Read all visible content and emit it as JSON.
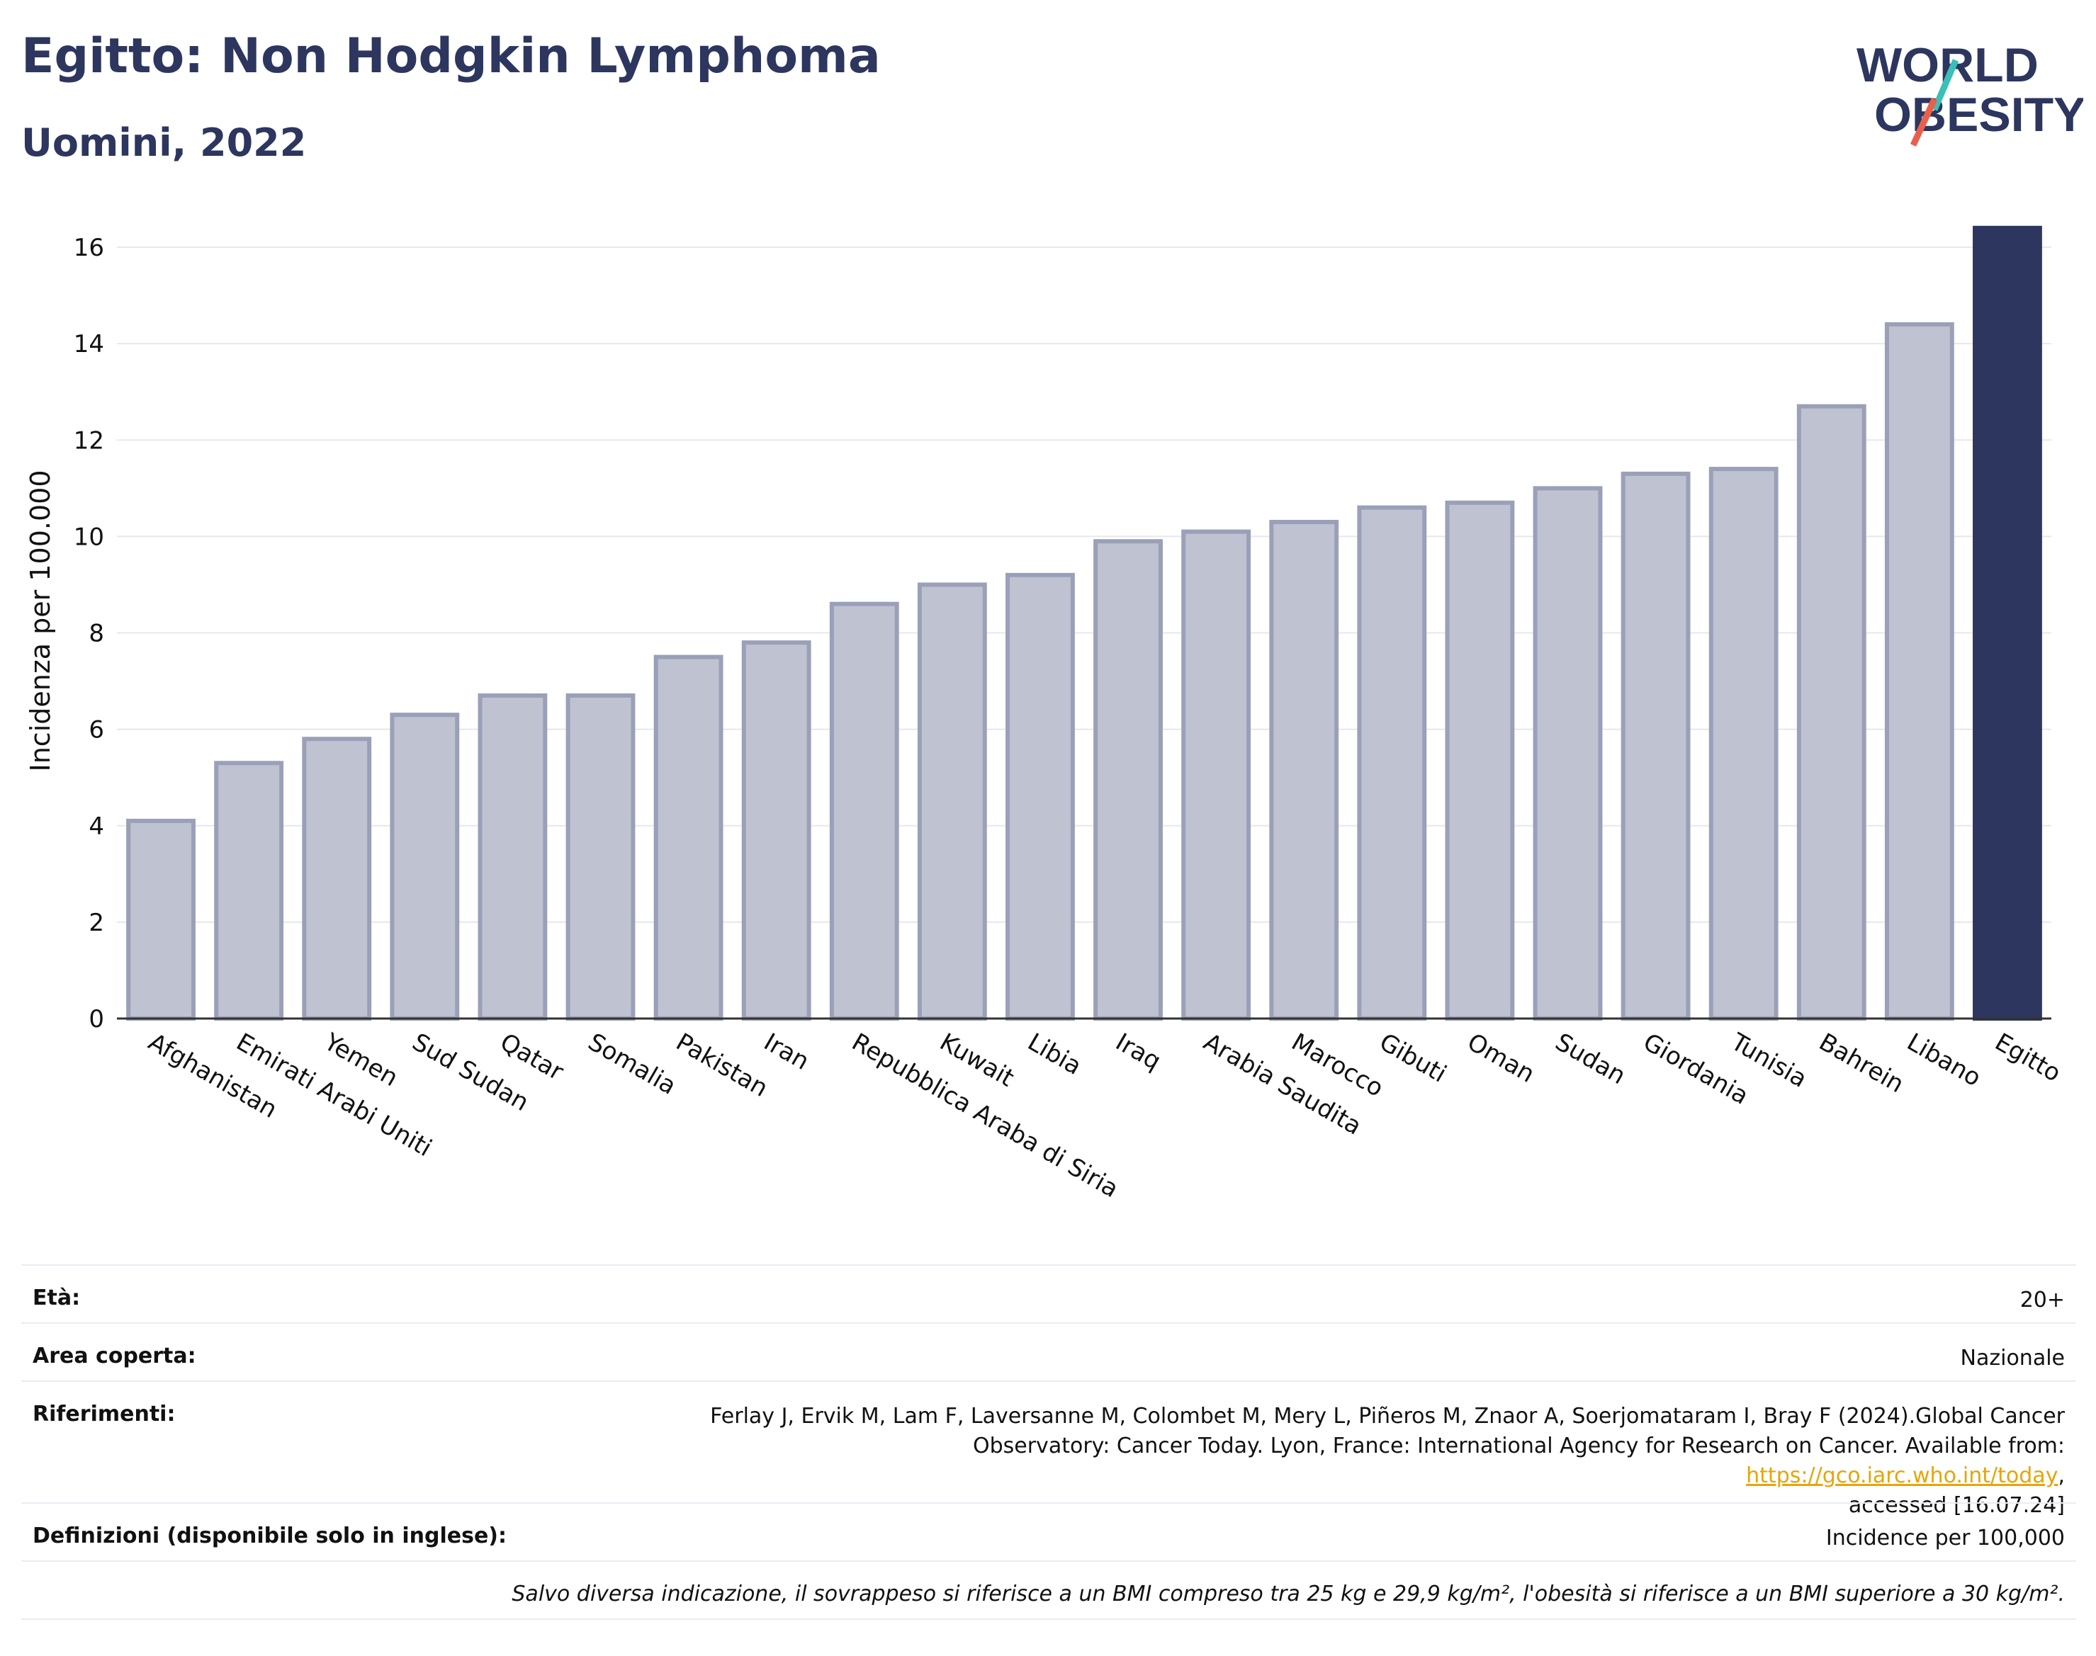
{
  "header": {
    "title": "Egitto: Non Hodgkin Lymphoma",
    "subtitle": "Uomini, 2022",
    "logo_line1": "WORLD",
    "logo_line2": "OBESITY"
  },
  "colors": {
    "highlight": "#2c365e",
    "bar_fill": "#bfc2d0",
    "bar_stroke": "#9aa0b8",
    "logo_text": "#2c365e",
    "logo_teal": "#3bbfb8",
    "logo_red": "#e8604c",
    "link": "#e6a50a"
  },
  "chart_data": {
    "type": "bar",
    "ylabel": "Incidenza per 100.000",
    "ylim": [
      0,
      16.5
    ],
    "yticks": [
      0,
      2,
      4,
      6,
      8,
      10,
      12,
      14,
      16
    ],
    "grid": true,
    "categories": [
      "Afghanistan",
      "Emirati Arabi Uniti",
      "Yemen",
      "Sud Sudan",
      "Qatar",
      "Somalia",
      "Pakistan",
      "Iran",
      "Repubblica Araba di Siria",
      "Kuwait",
      "Libia",
      "Iraq",
      "Arabia Saudita",
      "Marocco",
      "Gibuti",
      "Oman",
      "Sudan",
      "Giordania",
      "Tunisia",
      "Bahrein",
      "Libano",
      "Egitto"
    ],
    "values": [
      4.1,
      5.3,
      5.8,
      6.3,
      6.7,
      6.7,
      7.5,
      7.8,
      8.6,
      9.0,
      9.2,
      9.9,
      10.1,
      10.3,
      10.6,
      10.7,
      11.0,
      11.3,
      11.4,
      12.7,
      14.4,
      16.4
    ],
    "highlight": "Egitto"
  },
  "meta": {
    "age_label": "Età:",
    "age_value": "20+",
    "area_label": "Area coperta:",
    "area_value": "Nazionale",
    "ref_label": "Riferimenti:",
    "ref_text_1": "Ferlay J, Ervik M, Lam F, Laversanne M, Colombet M, Mery L, Piñeros M, Znaor A, Soerjomataram I, Bray F (2024).Global Cancer",
    "ref_text_2": "Observatory: Cancer Today. Lyon, France: International Agency for Research on Cancer. Available from: ",
    "ref_link": "https://gco.iarc.who.int/today",
    "ref_text_3": ",",
    "ref_text_4": "accessed [16.07.24]",
    "def_label": "Definizioni (disponibile solo in inglese):",
    "def_value": "Incidence per 100,000",
    "note": "Salvo diversa indicazione, il sovrappeso si riferisce a un BMI compreso tra 25 kg e 29,9 kg/m², l'obesità si riferisce a un BMI superiore a 30 kg/m²."
  }
}
